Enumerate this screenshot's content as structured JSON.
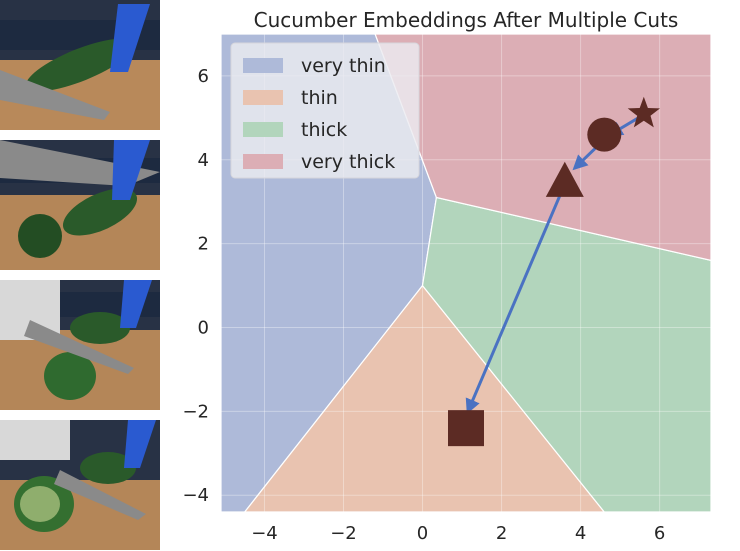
{
  "chart_data": {
    "type": "scatter",
    "title": "Cucumber Embeddings After Multiple Cuts",
    "xlabel": "",
    "ylabel": "",
    "xlim": [
      -5.1,
      7.3
    ],
    "ylim": [
      -4.4,
      7.0
    ],
    "x_ticks": [
      -4,
      -2,
      0,
      2,
      4,
      6
    ],
    "y_ticks": [
      -4,
      -2,
      0,
      2,
      4,
      6
    ],
    "grid": true,
    "legend_position": "top-left",
    "regions": [
      {
        "name": "very thin",
        "color": "#aebad9",
        "polygon": [
          [
            -5.1,
            7.0
          ],
          [
            -1.2,
            7.0
          ],
          [
            0.35,
            3.1
          ],
          [
            0.0,
            1.0
          ],
          [
            -4.5,
            -4.4
          ],
          [
            -5.1,
            -4.4
          ]
        ]
      },
      {
        "name": "thin",
        "color": "#e9c3b0",
        "polygon": [
          [
            0.0,
            1.0
          ],
          [
            -4.5,
            -4.4
          ],
          [
            4.6,
            -4.4
          ]
        ]
      },
      {
        "name": "thick",
        "color": "#b2d5bc",
        "polygon": [
          [
            0.35,
            3.1
          ],
          [
            0.0,
            1.0
          ],
          [
            4.6,
            -4.4
          ],
          [
            7.3,
            -4.4
          ],
          [
            7.3,
            1.6
          ]
        ]
      },
      {
        "name": "very thick",
        "color": "#dcaeb5",
        "polygon": [
          [
            -1.2,
            7.0
          ],
          [
            7.3,
            7.0
          ],
          [
            7.3,
            1.6
          ],
          [
            0.35,
            3.1
          ]
        ]
      }
    ],
    "points": [
      {
        "shape": "star",
        "x": 5.6,
        "y": 5.1
      },
      {
        "shape": "circle",
        "x": 4.6,
        "y": 4.6
      },
      {
        "shape": "triangle",
        "x": 3.6,
        "y": 3.5
      },
      {
        "shape": "square",
        "x": 1.1,
        "y": -2.4
      }
    ],
    "arrows": [
      {
        "from": [
          5.55,
          5.05
        ],
        "to": [
          4.75,
          4.6
        ]
      },
      {
        "from": [
          4.4,
          4.3
        ],
        "to": [
          3.85,
          3.8
        ]
      },
      {
        "from": [
          3.5,
          3.2
        ],
        "to": [
          1.15,
          -2.0
        ]
      }
    ],
    "marker_color": "#5c2b24",
    "arrow_color": "#4a72c2"
  }
}
